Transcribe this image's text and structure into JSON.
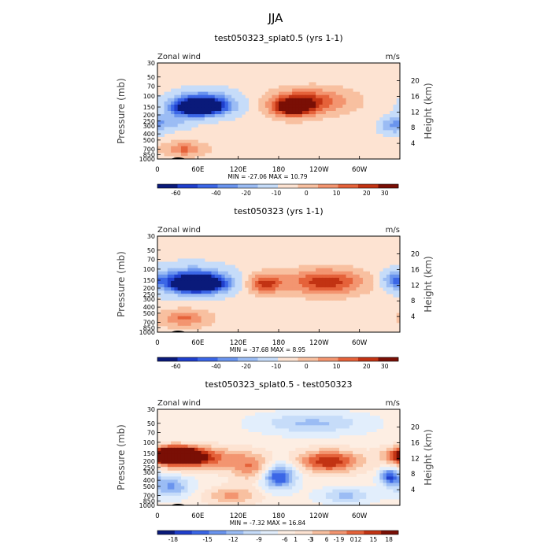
{
  "figure": {
    "title": "JJA"
  },
  "x_tick_labels": [
    "0",
    "60E",
    "120E",
    "180",
    "120W",
    "60W"
  ],
  "x_ticks_deg": [
    0,
    60,
    120,
    180,
    240,
    300
  ],
  "p_tick_labels": [
    "30",
    "50",
    "70",
    "100",
    "150",
    "200",
    "250",
    "300",
    "400",
    "500",
    "700",
    "850",
    "1000"
  ],
  "p_ticks_mb": [
    30,
    50,
    70,
    100,
    150,
    200,
    250,
    300,
    400,
    500,
    700,
    850,
    1000
  ],
  "h_tick_labels": [
    "4",
    "8",
    "12",
    "16",
    "20"
  ],
  "h_ticks_km": [
    4,
    8,
    12,
    16,
    20
  ],
  "colors": {
    "absolute": [
      "#0a1a7a",
      "#1f3fcc",
      "#3b66e6",
      "#6a94ee",
      "#9bbcf4",
      "#c6dcf9",
      "#fde3d2",
      "#f8c0a0",
      "#f39570",
      "#e5623a",
      "#c23313",
      "#7a0f05"
    ],
    "difference": [
      "#0a1a7a",
      "#1f3fcc",
      "#3b66e6",
      "#6a94ee",
      "#9bbcf4",
      "#c6dcf9",
      "#e2eefc",
      "#fdeee3",
      "#fde3d2",
      "#f8c0a0",
      "#f39570",
      "#e5623a",
      "#c23313",
      "#7a0f05"
    ]
  },
  "panels": [
    {
      "title": "test050323_splat0.5 (yrs 1-1)",
      "left_label": "Zonal wind",
      "right_label": "m/s",
      "y_left_title": "Pressure (mb)",
      "y_right_title": "Height (km)",
      "min_max": "MIN = -27.06   MAX =  10.79",
      "colorbar_labels": [
        "-60",
        "-40",
        "-20",
        "-10",
        "0",
        "10",
        "20",
        "30"
      ],
      "palette": "absolute",
      "blobs": [
        {
          "lon": 60,
          "p": 150,
          "rx": 35,
          "rp": 0.28,
          "v": 1.0
        },
        {
          "lon": 70,
          "p": 130,
          "rx": 45,
          "rp": 0.45,
          "v": 0.55
        },
        {
          "lon": 200,
          "p": 150,
          "rx": 30,
          "rp": 0.35,
          "v": -0.7
        },
        {
          "lon": 230,
          "p": 120,
          "rx": 55,
          "rp": 0.45,
          "v": -0.45
        },
        {
          "lon": 40,
          "p": 700,
          "rx": 30,
          "rp": 0.25,
          "v": -0.35
        },
        {
          "lon": 20,
          "p": 250,
          "rx": 30,
          "rp": 0.3,
          "v": 0.25
        },
        {
          "lon": 350,
          "p": 300,
          "rx": 20,
          "rp": 0.3,
          "v": 0.3
        }
      ]
    },
    {
      "title": "test050323 (yrs 1-1)",
      "left_label": "Zonal wind",
      "right_label": "m/s",
      "y_left_title": "Pressure (mb)",
      "y_right_title": "Height (km)",
      "min_max": "MIN = -37.68   MAX =   8.95",
      "colorbar_labels": [
        "-60",
        "-40",
        "-20",
        "-10",
        "0",
        "10",
        "20",
        "30"
      ],
      "palette": "absolute",
      "blobs": [
        {
          "lon": 60,
          "p": 170,
          "rx": 38,
          "rp": 0.3,
          "v": 1.1
        },
        {
          "lon": 50,
          "p": 150,
          "rx": 55,
          "rp": 0.5,
          "v": 0.5
        },
        {
          "lon": 160,
          "p": 170,
          "rx": 25,
          "rp": 0.35,
          "v": -0.5
        },
        {
          "lon": 250,
          "p": 160,
          "rx": 55,
          "rp": 0.45,
          "v": -0.55
        },
        {
          "lon": 40,
          "p": 600,
          "rx": 35,
          "rp": 0.3,
          "v": -0.35
        },
        {
          "lon": 350,
          "p": 150,
          "rx": 15,
          "rp": 0.3,
          "v": 0.3
        }
      ]
    },
    {
      "title": "test050323_splat0.5 - test050323",
      "left_label": "Zonal wind",
      "right_label": "m/s",
      "y_left_title": "Pressure (mb)",
      "y_right_title": "Height (km)",
      "min_max": "MIN =  -7.32   MAX =  16.84",
      "colorbar_labels": [
        "-18",
        "-15",
        "-12",
        "-9",
        "-6",
        "-3",
        "-1",
        "0",
        "1",
        "3",
        "6",
        "9",
        "12",
        "15",
        "18"
      ],
      "palette": "difference",
      "blobs": [
        {
          "lon": 25,
          "p": 160,
          "rx": 35,
          "rp": 0.3,
          "v": -1.1
        },
        {
          "lon": 60,
          "p": 180,
          "rx": 60,
          "rp": 0.4,
          "v": -0.5
        },
        {
          "lon": 140,
          "p": 250,
          "rx": 30,
          "rp": 0.5,
          "v": -0.35
        },
        {
          "lon": 180,
          "p": 350,
          "rx": 25,
          "rp": 0.45,
          "v": 0.65
        },
        {
          "lon": 255,
          "p": 200,
          "rx": 45,
          "rp": 0.4,
          "v": -0.6
        },
        {
          "lon": 230,
          "p": 50,
          "rx": 80,
          "rp": 0.4,
          "v": 0.3
        },
        {
          "lon": 20,
          "p": 500,
          "rx": 30,
          "rp": 0.4,
          "v": 0.4
        },
        {
          "lon": 345,
          "p": 350,
          "rx": 15,
          "rp": 0.3,
          "v": 0.6
        },
        {
          "lon": 110,
          "p": 700,
          "rx": 40,
          "rp": 0.3,
          "v": -0.3
        },
        {
          "lon": 280,
          "p": 700,
          "rx": 40,
          "rp": 0.3,
          "v": 0.3
        }
      ]
    }
  ],
  "chart_data": [
    {
      "type": "heatmap",
      "title": "test050323_splat0.5 (yrs 1-1)",
      "xlabel": "",
      "ylabel": "Pressure (mb)",
      "y2label": "Height (km)",
      "x_ticks": [
        "0",
        "60E",
        "120E",
        "180",
        "120W",
        "60W"
      ],
      "y_ticks": [
        30,
        50,
        70,
        100,
        150,
        200,
        250,
        300,
        400,
        500,
        700,
        850,
        1000
      ],
      "min": -27.06,
      "max": 10.79,
      "levels": [
        -60,
        -40,
        -20,
        -10,
        0,
        10,
        20,
        30
      ]
    },
    {
      "type": "heatmap",
      "title": "test050323 (yrs 1-1)",
      "xlabel": "",
      "ylabel": "Pressure (mb)",
      "y2label": "Height (km)",
      "x_ticks": [
        "0",
        "60E",
        "120E",
        "180",
        "120W",
        "60W"
      ],
      "y_ticks": [
        30,
        50,
        70,
        100,
        150,
        200,
        250,
        300,
        400,
        500,
        700,
        850,
        1000
      ],
      "min": -37.68,
      "max": 8.95,
      "levels": [
        -60,
        -40,
        -20,
        -10,
        0,
        10,
        20,
        30
      ]
    },
    {
      "type": "heatmap",
      "title": "test050323_splat0.5 - test050323",
      "xlabel": "",
      "ylabel": "Pressure (mb)",
      "y2label": "Height (km)",
      "x_ticks": [
        "0",
        "60E",
        "120E",
        "180",
        "120W",
        "60W"
      ],
      "y_ticks": [
        30,
        50,
        70,
        100,
        150,
        200,
        250,
        300,
        400,
        500,
        700,
        850,
        1000
      ],
      "min": -7.32,
      "max": 16.84,
      "levels": [
        -18,
        -15,
        -12,
        -9,
        -6,
        -3,
        -1,
        0,
        1,
        3,
        6,
        9,
        12,
        15,
        18
      ]
    }
  ]
}
